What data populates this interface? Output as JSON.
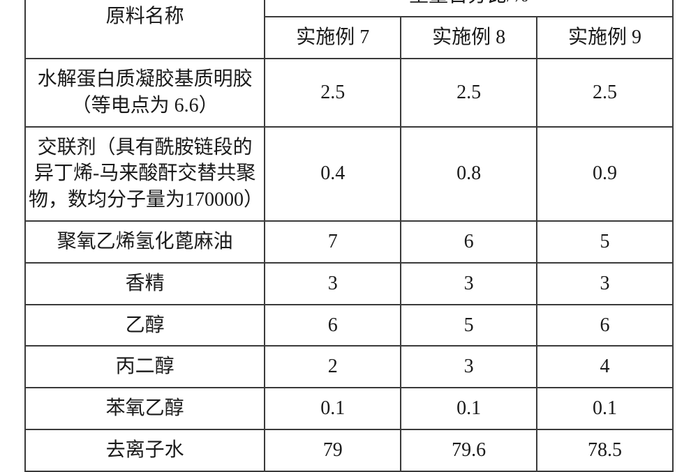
{
  "table": {
    "type": "table",
    "border_color": "#3a3a3a",
    "background_color": "#ffffff",
    "text_color": "#1a1a1a",
    "font_family": "SimSun",
    "header_fontsize": 28,
    "cell_fontsize": 28,
    "col_widths_pct": [
      37,
      21,
      21,
      21
    ],
    "header": {
      "row_name_label": "原料名称",
      "group_label": "重量百分比/%",
      "columns": [
        "实施例 7",
        "实施例 8",
        "实施例 9"
      ]
    },
    "rows": [
      {
        "name": "水解蛋白质凝胶基质明胶（等电点为 6.6）",
        "values": [
          "2.5",
          "2.5",
          "2.5"
        ]
      },
      {
        "name": "交联剂（具有酰胺链段的异丁烯-马来酸酐交替共聚物，数均分子量为170000）",
        "values": [
          "0.4",
          "0.8",
          "0.9"
        ]
      },
      {
        "name": "聚氧乙烯氢化蓖麻油",
        "values": [
          "7",
          "6",
          "5"
        ]
      },
      {
        "name": "香精",
        "values": [
          "3",
          "3",
          "3"
        ]
      },
      {
        "name": "乙醇",
        "values": [
          "6",
          "5",
          "6"
        ]
      },
      {
        "name": "丙二醇",
        "values": [
          "2",
          "3",
          "4"
        ]
      },
      {
        "name": "苯氧乙醇",
        "values": [
          "0.1",
          "0.1",
          "0.1"
        ]
      },
      {
        "name": "去离子水",
        "values": [
          "79",
          "79.6",
          "78.5"
        ]
      }
    ]
  }
}
